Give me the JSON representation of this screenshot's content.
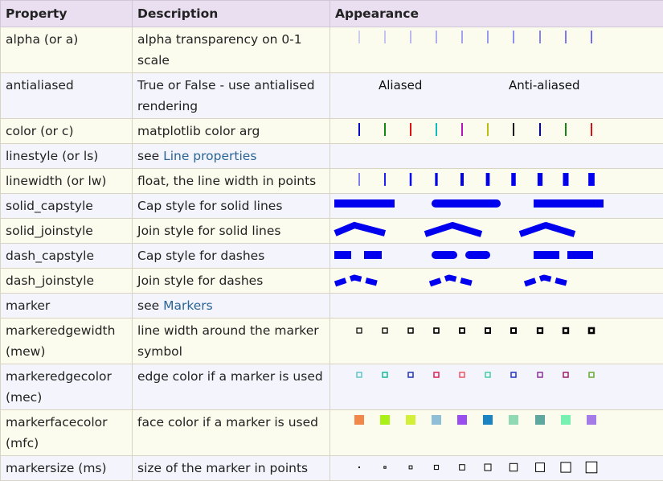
{
  "header": {
    "property": "Property",
    "description": "Description",
    "appearance": "Appearance"
  },
  "rows": [
    {
      "property": "alpha (or a)",
      "description": "alpha transparency on 0-1 scale",
      "demo": "alpha"
    },
    {
      "property": "antialiased",
      "description": "True or False - use antialised rendering",
      "demo": "antialiased",
      "labels": [
        "Aliased",
        "Anti-aliased"
      ]
    },
    {
      "property": "color (or c)",
      "description": "matplotlib color arg",
      "demo": "color",
      "colors": [
        "#0000cc",
        "#118811",
        "#dd1111",
        "#11bbbb",
        "#bb11bb",
        "#bbbb11",
        "#000000",
        "#0000cc",
        "#118811",
        "#dd1111"
      ]
    },
    {
      "property": "linestyle (or ls)",
      "description_prefix": "see ",
      "description_link": "Line properties",
      "demo": "none"
    },
    {
      "property": "linewidth (or lw)",
      "description": "float, the line width in points",
      "demo": "linewidth"
    },
    {
      "property": "solid_capstyle",
      "description": "Cap style for solid lines",
      "demo": "solid_capstyle"
    },
    {
      "property": "solid_joinstyle",
      "description": "Join style for solid lines",
      "demo": "solid_joinstyle"
    },
    {
      "property": "dash_capstyle",
      "description": "Cap style for dashes",
      "demo": "dash_capstyle"
    },
    {
      "property": "dash_joinstyle",
      "description": "Join style for dashes",
      "demo": "dash_joinstyle"
    },
    {
      "property": "marker",
      "description_prefix": "see ",
      "description_link": "Markers",
      "demo": "none"
    },
    {
      "property": "markeredgewidth (mew)",
      "description": "line width around the marker symbol",
      "demo": "mew"
    },
    {
      "property": "markeredgecolor (mec)",
      "description": "edge color if a marker is used",
      "demo": "mec",
      "colors": [
        "#5fc7c7",
        "#11bb99",
        "#2233bb",
        "#dd2255",
        "#ee5566",
        "#44ccaa",
        "#2233cc",
        "#883399",
        "#992266",
        "#66aa33"
      ]
    },
    {
      "property": "markerfacecolor (mfc)",
      "description": "face color if a marker is used",
      "demo": "mfc",
      "colors": [
        "#f2874a",
        "#a8f015",
        "#d4ef3a",
        "#8fbfd6",
        "#9a4ef0",
        "#1a84c2",
        "#8fd9b4",
        "#5fa8a0",
        "#78f0b0",
        "#a57be8"
      ]
    },
    {
      "property": "markersize (ms)",
      "description": "size of the marker in points",
      "demo": "ms"
    }
  ]
}
